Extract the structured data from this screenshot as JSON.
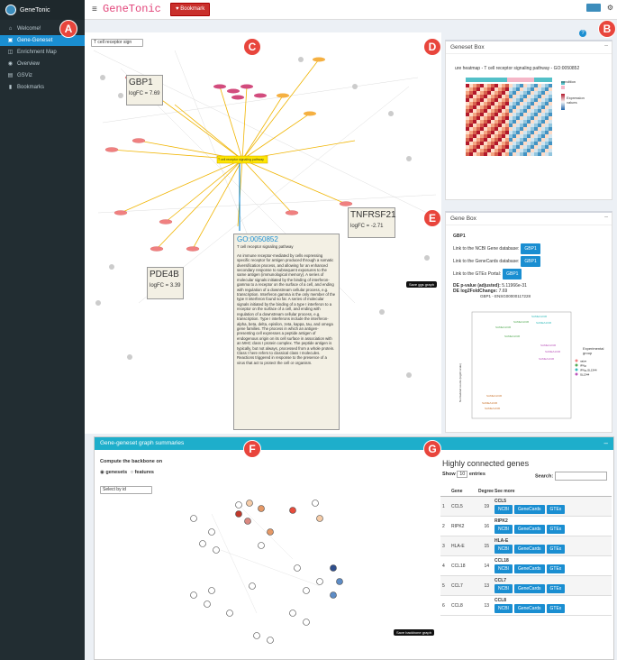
{
  "app": {
    "brand": "GeneTonic",
    "title": "GeneTonic",
    "bookmark_label": "Bookmark"
  },
  "sidebar": {
    "items": [
      {
        "label": "Welcome!",
        "icon": "home-icon"
      },
      {
        "label": "Gene-Geneset",
        "icon": "network-icon",
        "active": true
      },
      {
        "label": "Enrichment Map",
        "icon": "map-icon"
      },
      {
        "label": "Overview",
        "icon": "eye-icon"
      },
      {
        "label": "GSViz",
        "icon": "chart-icon"
      },
      {
        "label": "Bookmarks",
        "icon": "bookmark-icon"
      }
    ]
  },
  "markers": [
    "A",
    "B",
    "C",
    "D",
    "E",
    "F",
    "G"
  ],
  "graph": {
    "select_value": "T cell receptor sign",
    "center_label": "T cell receptor signaling pathway",
    "gbp1": {
      "name": "GBP1",
      "fc": "logFC = 7.69"
    },
    "pde4b": {
      "name": "PDE4B",
      "fc": "logFC = 3.39"
    },
    "tnfrsf21": {
      "name": "TNFRSF21",
      "fc": "logFC = -2.71"
    },
    "go": {
      "id": "GO:0050852",
      "name": "T cell receptor signaling pathway",
      "desc": "An immune receptor-mediated by cells expressing specific receptor for antigen produced through a somatic diversification process, and allowing for an enhanced secondary response to subsequent exposures to the same antigen (immunological memory). A series of molecular signals initiated by the binding of interferon-gamma to a receptor on the surface of a cell, and ending with regulation of a downstream cellular process, e.g. transcription. Interferon gamma is the only member of the type II interferon found so far. A series of molecular signals initiated by the binding of a type I interferon to a receptor on the surface of a cell, and ending with regulation of a downstream cellular process, e.g. transcription. Type I interferons include the interferon-alpha, beta, delta, episilon, zeta, kappa, tau, and omega gene families. The process in which an antigen-presenting cell expresses a peptide antigen of endogenous origin on its cell surface in association with an MHC class I protein complex. The peptide antigen is typically, but not always, processed from a whole protein. Class I here refers to classical class I molecules. Reactions triggered in response to the presence of a virus that act to protect the cell or organism."
    },
    "save_label": "Save ggs graph"
  },
  "geneset_box": {
    "title": "Geneset Box",
    "heatmap_title": "ure heatmap - T cell receptor signaling pathway - GO:0050852",
    "legend_condition": "condition",
    "legend_exp": "Expression values"
  },
  "gene_box": {
    "title": "Gene Box",
    "gene": "GBP1",
    "link_ncbi": "Link to the NCBI Gene database:",
    "link_genecards": "Link to the GeneCards database:",
    "link_gtex": "Link to the GTEx Portal:",
    "btn": "GBP1",
    "padj_label": "DE p-value (adjusted):",
    "padj": "5.11966e-31",
    "lfc_label": "DE log2FoldChange:",
    "lfc": "7.69",
    "plot_title": "GBP1 - ENSG00000117228",
    "y_axis": "Normalized counts (log10 scale)",
    "legend_title": "Experimental group",
    "groups": [
      "naive",
      "IFNg",
      "IFNg_SL1344",
      "SL1344"
    ]
  },
  "bottom": {
    "title": "Gene-geneset graph summaries",
    "backbone_label": "Compute the backbone on",
    "radio_a": "genesets",
    "radio_b": "features",
    "select_value": "Select by id",
    "save_label": "Save backbone graph",
    "table_title": "Highly connected genes",
    "show": "Show",
    "entries": "entries",
    "show_value": "10",
    "search": "Search:",
    "cols": [
      "Gene",
      "Degree",
      "See more"
    ],
    "rows": [
      {
        "n": "1",
        "gene": "CCL5",
        "deg": "19"
      },
      {
        "n": "2",
        "gene": "RIPK2",
        "deg": "16"
      },
      {
        "n": "3",
        "gene": "HLA-E",
        "deg": "15"
      },
      {
        "n": "4",
        "gene": "CCL18",
        "deg": "14"
      },
      {
        "n": "5",
        "gene": "CCL7",
        "deg": "13"
      },
      {
        "n": "6",
        "gene": "CCL8",
        "deg": "13"
      }
    ],
    "btn_labels": [
      "NCBI",
      "GeneCards",
      "GTEx"
    ]
  },
  "colors": {
    "accent": "#1a8ed1",
    "sidebar": "#222d32",
    "title_pink": "#e2457a",
    "teal": "#1eaecb"
  }
}
